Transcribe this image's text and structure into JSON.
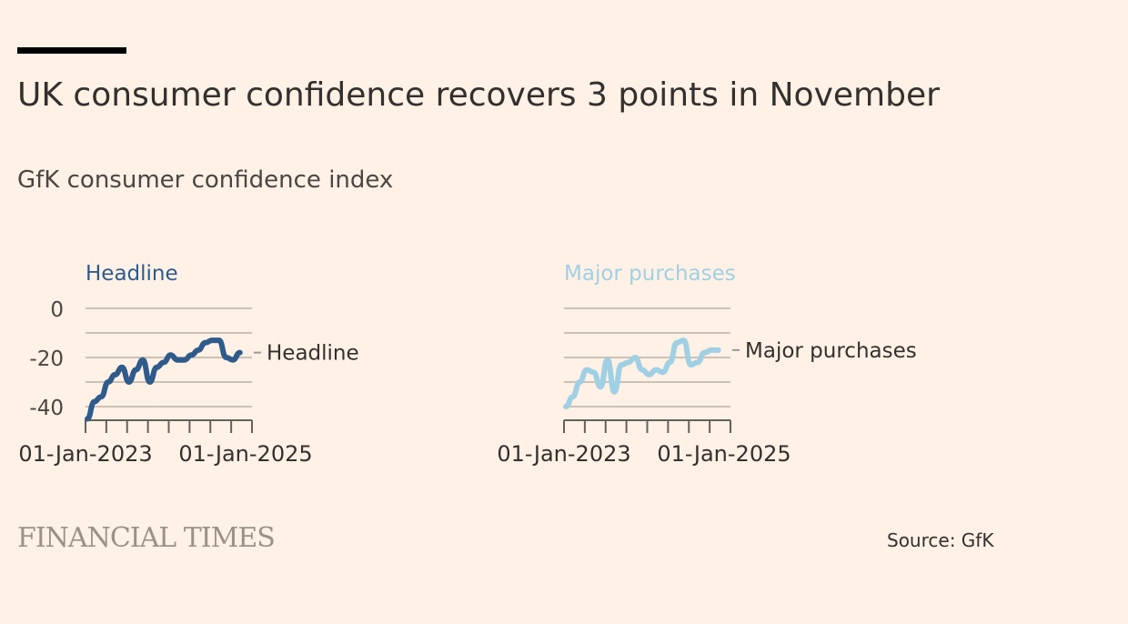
{
  "title": "UK consumer confidence recovers 3 points in November",
  "subtitle": "GfK consumer confidence index",
  "branding": "FINANCIAL TIMES",
  "source": "Source: GfK",
  "chart_data": [
    {
      "type": "line",
      "title": "Headline",
      "color": "#2e5b8c",
      "series_label": "Headline",
      "yticks": [
        0,
        -20,
        -40
      ],
      "ylim": [
        -48,
        0
      ],
      "xtick_labels": [
        "01-Jan-2023",
        "01-Jan-2025"
      ],
      "x": [
        "2023-01",
        "2023-02",
        "2023-03",
        "2023-04",
        "2023-05",
        "2023-06",
        "2023-07",
        "2023-08",
        "2023-09",
        "2023-10",
        "2023-11",
        "2023-12",
        "2024-01",
        "2024-02",
        "2024-03",
        "2024-04",
        "2024-05",
        "2024-06",
        "2024-07",
        "2024-08",
        "2024-09",
        "2024-10",
        "2024-11"
      ],
      "values": [
        -45,
        -38,
        -36,
        -30,
        -27,
        -24,
        -30,
        -25,
        -21,
        -30,
        -24,
        -22,
        -19,
        -21,
        -21,
        -19,
        -17,
        -14,
        -13,
        -13,
        -20,
        -21,
        -18
      ]
    },
    {
      "type": "line",
      "title": "Major purchases",
      "color": "#9fd0e4",
      "series_label": "Major purchases",
      "yticks": [],
      "ylim": [
        -48,
        0
      ],
      "xtick_labels": [
        "01-Jan-2023",
        "01-Jan-2025"
      ],
      "x": [
        "2023-01",
        "2023-02",
        "2023-03",
        "2023-04",
        "2023-05",
        "2023-06",
        "2023-07",
        "2023-08",
        "2023-09",
        "2023-10",
        "2023-11",
        "2023-12",
        "2024-01",
        "2024-02",
        "2024-03",
        "2024-04",
        "2024-05",
        "2024-06",
        "2024-07",
        "2024-08",
        "2024-09",
        "2024-10",
        "2024-11"
      ],
      "values": [
        -40,
        -36,
        -30,
        -25,
        -26,
        -32,
        -21,
        -34,
        -23,
        -22,
        -20,
        -25,
        -27,
        -25,
        -26,
        -22,
        -14,
        -13,
        -23,
        -22,
        -18,
        -17,
        -17
      ]
    }
  ]
}
